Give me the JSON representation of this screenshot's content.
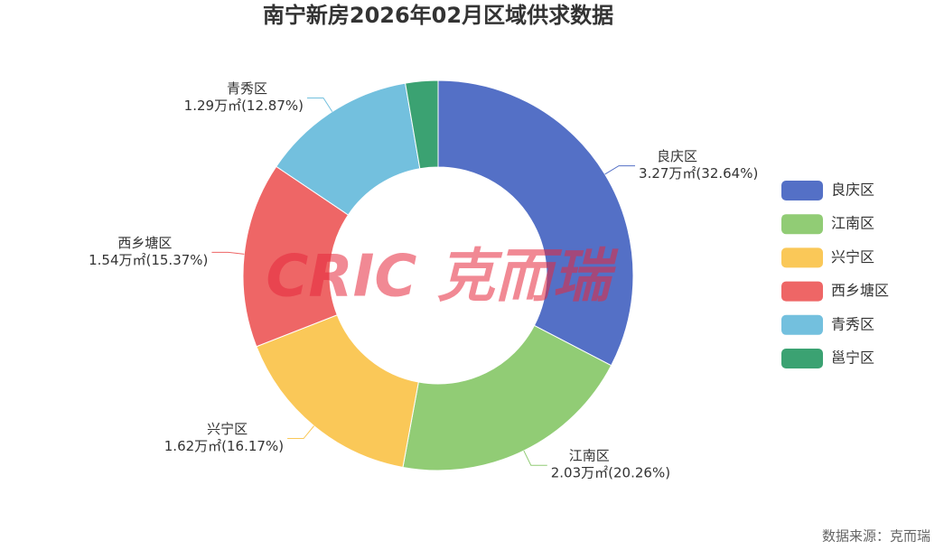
{
  "chart_data": {
    "type": "donut",
    "title": "南宁新房2026年02月区域供求数据",
    "categories": [
      "良庆区",
      "江南区",
      "兴宁区",
      "西乡塘区",
      "青秀区",
      "邕宁区"
    ],
    "values": [
      3.27,
      2.03,
      1.62,
      1.54,
      1.29,
      0.27
    ],
    "value_labels": [
      "3.27万㎡(32.64%)",
      "2.03万㎡(20.26%)",
      "1.62万㎡(16.17%)",
      "1.54万㎡(15.37%)",
      "1.29万㎡(12.87%)",
      null
    ],
    "colors": [
      "#5470c6",
      "#91cc75",
      "#fac858",
      "#ee6666",
      "#73c0de",
      "#3ba272"
    ],
    "legend": "right",
    "watermark": "CRIC 克而瑞",
    "source": "数据来源：克而瑞"
  }
}
